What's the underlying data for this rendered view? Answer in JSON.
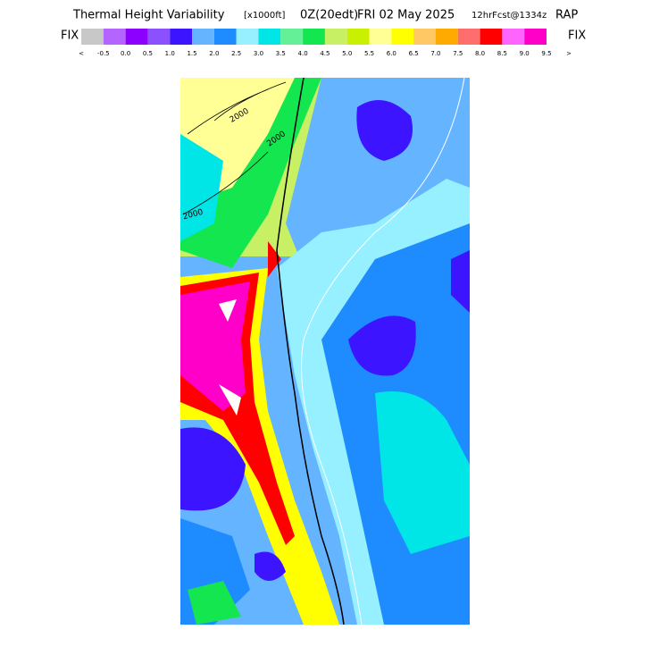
{
  "header": {
    "title": "Thermal Height Variability",
    "units": "[x1000ft]",
    "time": "0Z(20edt)",
    "date": "FRI 02 May 2025",
    "forecast": "12hrFcst@1334z",
    "model": "RAP"
  },
  "legend": {
    "left_label": "FIX",
    "right_label": "FIX",
    "colors": [
      "#c8c8c8",
      "#b464ff",
      "#8c00ff",
      "#8c50ff",
      "#3c14ff",
      "#64b4ff",
      "#1e8cff",
      "#96f0ff",
      "#00e6e6",
      "#64f096",
      "#14e650",
      "#c8f064",
      "#c8f000",
      "#ffff96",
      "#ffff00",
      "#ffc864",
      "#ffaa00",
      "#ff6e6e",
      "#ff0000",
      "#ff64ff",
      "#ff00c8"
    ],
    "labels": [
      "<",
      "-0.5",
      "0.0",
      "0.5",
      "1.0",
      "1.5",
      "2.0",
      "2.5",
      "3.0",
      "3.5",
      "4.0",
      "4.5",
      "5.0",
      "5.5",
      "6.0",
      "6.5",
      "7.0",
      "7.5",
      "8.0",
      "8.5",
      "9.0",
      "9.5",
      ">"
    ]
  },
  "map": {
    "contour_labels": [
      "2000",
      "2000",
      "2000"
    ]
  }
}
